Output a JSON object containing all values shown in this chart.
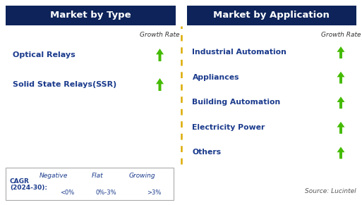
{
  "title_left": "Market by Type",
  "title_right": "Market by Application",
  "header_bg": "#0d2359",
  "header_fg": "#ffffff",
  "growth_rate_label": "Growth Rate",
  "items_left": [
    "Optical Relays",
    "Solid State Relays(SSR)"
  ],
  "items_right": [
    "Industrial Automation",
    "Appliances",
    "Building Automation",
    "Electricity Power",
    "Others"
  ],
  "item_color": "#1a3a8c",
  "arrow_green": "#44bb00",
  "arrow_red": "#cc1100",
  "arrow_yellow": "#ddaa00",
  "divider_color": "#ddaa00",
  "legend_box_bg": "#ffffff",
  "legend_border": "#aaaaaa",
  "legend_negative_label": "Negative",
  "legend_negative_sub": "<0%",
  "legend_flat_label": "Flat",
  "legend_flat_sub": "0%-3%",
  "legend_growing_label": "Growing",
  "legend_growing_sub": ">3%",
  "source_text": "Source: Lucintel",
  "bg_color": "#ffffff",
  "fig_w": 5.13,
  "fig_h": 2.91,
  "dpi": 100
}
